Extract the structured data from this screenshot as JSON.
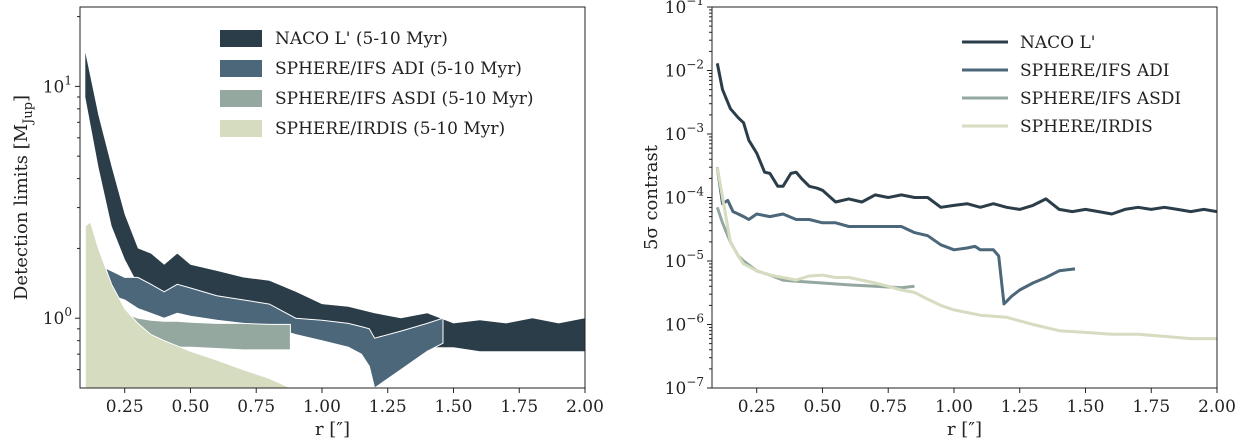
{
  "chart_data": [
    {
      "type": "area",
      "title": "",
      "xlabel": "r [″]",
      "ylabel": "Detection limits [M",
      "ylabel_sub": "Jup",
      "ylabel_suffix": "]",
      "xlim": [
        0.08,
        2.0
      ],
      "ylim": [
        0.5,
        22
      ],
      "yscale": "log",
      "grid": false,
      "legend_position": "top-right",
      "x_ticks": [
        {
          "value": 0.25,
          "label": "0.25"
        },
        {
          "value": 0.5,
          "label": "0.50"
        },
        {
          "value": 0.75,
          "label": "0.75"
        },
        {
          "value": 1.0,
          "label": "1.00"
        },
        {
          "value": 1.25,
          "label": "1.25"
        },
        {
          "value": 1.5,
          "label": "1.50"
        },
        {
          "value": 1.75,
          "label": "1.75"
        },
        {
          "value": 2.0,
          "label": "2.00"
        }
      ],
      "y_ticks": [
        {
          "value": 1,
          "label": "10",
          "exp": "0"
        },
        {
          "value": 10,
          "label": "10",
          "exp": "1"
        }
      ],
      "series": [
        {
          "name": "NACO L' (5-10 Myr)",
          "color": "#2b3d49",
          "x": [
            0.1,
            0.15,
            0.2,
            0.25,
            0.3,
            0.35,
            0.4,
            0.45,
            0.5,
            0.6,
            0.7,
            0.8,
            0.9,
            1.0,
            1.1,
            1.2,
            1.3,
            1.4,
            1.5,
            1.6,
            1.7,
            1.8,
            1.9,
            2.0
          ],
          "upper": [
            14.0,
            7.5,
            4.5,
            2.8,
            2.0,
            1.9,
            1.7,
            1.9,
            1.7,
            1.6,
            1.5,
            1.45,
            1.3,
            1.15,
            1.12,
            1.05,
            1.0,
            1.05,
            0.95,
            0.98,
            0.95,
            1.0,
            0.95,
            1.0
          ],
          "lower": [
            9.0,
            4.5,
            2.5,
            1.8,
            1.4,
            1.3,
            1.25,
            1.25,
            1.2,
            1.15,
            1.1,
            1.05,
            1.0,
            0.98,
            0.95,
            0.75,
            0.72,
            0.75,
            0.75,
            0.72,
            0.72,
            0.72,
            0.72,
            0.72
          ]
        },
        {
          "name": "SPHERE/IFS ADI (5-10 Myr)",
          "color": "#4b6779",
          "x": [
            0.1,
            0.15,
            0.2,
            0.25,
            0.3,
            0.35,
            0.4,
            0.45,
            0.5,
            0.6,
            0.7,
            0.8,
            0.9,
            1.0,
            1.1,
            1.15,
            1.18,
            1.2,
            1.3,
            1.4,
            1.46
          ],
          "upper": [
            1.8,
            1.7,
            1.6,
            1.5,
            1.5,
            1.4,
            1.3,
            1.4,
            1.35,
            1.25,
            1.2,
            1.15,
            1.0,
            0.98,
            0.95,
            0.92,
            0.9,
            0.82,
            0.88,
            0.95,
            1.0
          ],
          "lower": [
            1.3,
            1.3,
            1.25,
            1.2,
            1.1,
            1.05,
            1.0,
            1.05,
            1.02,
            0.98,
            0.95,
            0.92,
            0.85,
            0.8,
            0.75,
            0.7,
            0.62,
            0.5,
            0.6,
            0.72,
            0.78
          ]
        },
        {
          "name": "SPHERE/IFS ASDI (5-10 Myr)",
          "color": "#94a89f",
          "x": [
            0.1,
            0.15,
            0.2,
            0.25,
            0.3,
            0.35,
            0.4,
            0.45,
            0.5,
            0.6,
            0.7,
            0.8,
            0.88
          ],
          "upper": [
            1.5,
            1.2,
            1.1,
            1.05,
            1.0,
            0.98,
            0.97,
            0.97,
            0.96,
            0.95,
            0.95,
            0.94,
            0.94
          ],
          "lower": [
            0.9,
            0.85,
            0.82,
            0.8,
            0.78,
            0.76,
            0.76,
            0.75,
            0.75,
            0.74,
            0.73,
            0.73,
            0.73
          ]
        },
        {
          "name": "SPHERE/IRDIS (5-10 Myr)",
          "color": "#d5dcc0",
          "x": [
            0.1,
            0.12,
            0.15,
            0.2,
            0.25,
            0.3,
            0.35,
            0.4,
            0.5,
            0.6,
            0.7,
            0.8,
            0.88
          ],
          "upper": [
            2.5,
            2.6,
            2.0,
            1.4,
            1.1,
            0.95,
            0.85,
            0.8,
            0.72,
            0.66,
            0.6,
            0.55,
            0.5
          ],
          "lower": [
            0.5,
            0.5,
            0.5,
            0.5,
            0.5,
            0.5,
            0.5,
            0.5,
            0.5,
            0.5,
            0.5,
            0.5,
            0.5
          ]
        }
      ]
    },
    {
      "type": "line",
      "title": "",
      "xlabel": "r [″]",
      "ylabel": "5σ contrast",
      "xlim": [
        0.08,
        2.0
      ],
      "ylim": [
        1e-07,
        0.1
      ],
      "yscale": "log",
      "grid": false,
      "legend_position": "top-right",
      "x_ticks": [
        {
          "value": 0.25,
          "label": "0.25"
        },
        {
          "value": 0.5,
          "label": "0.50"
        },
        {
          "value": 0.75,
          "label": "0.75"
        },
        {
          "value": 1.0,
          "label": "1.00"
        },
        {
          "value": 1.25,
          "label": "1.25"
        },
        {
          "value": 1.5,
          "label": "1.50"
        },
        {
          "value": 1.75,
          "label": "1.75"
        },
        {
          "value": 2.0,
          "label": "2.00"
        }
      ],
      "y_ticks": [
        {
          "value": 1e-07,
          "label": "10",
          "exp": "−7"
        },
        {
          "value": 1e-06,
          "label": "10",
          "exp": "−6"
        },
        {
          "value": 1e-05,
          "label": "10",
          "exp": "−5"
        },
        {
          "value": 0.0001,
          "label": "10",
          "exp": "−4"
        },
        {
          "value": 0.001,
          "label": "10",
          "exp": "−3"
        },
        {
          "value": 0.01,
          "label": "10",
          "exp": "−2"
        },
        {
          "value": 0.1,
          "label": "10",
          "exp": "−1"
        }
      ],
      "series": [
        {
          "name": "NACO L'",
          "color": "#2b3d49",
          "x": [
            0.1,
            0.12,
            0.15,
            0.18,
            0.2,
            0.22,
            0.25,
            0.28,
            0.3,
            0.33,
            0.35,
            0.38,
            0.4,
            0.42,
            0.45,
            0.48,
            0.5,
            0.55,
            0.6,
            0.65,
            0.7,
            0.75,
            0.8,
            0.85,
            0.9,
            0.95,
            1.0,
            1.05,
            1.1,
            1.15,
            1.2,
            1.25,
            1.3,
            1.35,
            1.4,
            1.45,
            1.5,
            1.55,
            1.6,
            1.65,
            1.7,
            1.75,
            1.8,
            1.85,
            1.9,
            1.95,
            2.0
          ],
          "y": [
            0.013,
            0.005,
            0.0025,
            0.0018,
            0.0015,
            0.0008,
            0.0005,
            0.00025,
            0.00024,
            0.00015,
            0.00015,
            0.00024,
            0.00025,
            0.0002,
            0.00015,
            0.00014,
            0.00013,
            8.5e-05,
            9.5e-05,
            8.5e-05,
            0.00011,
            0.0001,
            0.00011,
            0.0001,
            0.0001,
            7e-05,
            7.5e-05,
            8e-05,
            7e-05,
            8e-05,
            7e-05,
            6.5e-05,
            7.5e-05,
            9.5e-05,
            6.5e-05,
            6e-05,
            6.5e-05,
            6e-05,
            5.5e-05,
            6.5e-05,
            7e-05,
            6.5e-05,
            7e-05,
            6.5e-05,
            6e-05,
            6.5e-05,
            6e-05
          ]
        },
        {
          "name": "SPHERE/IFS ADI",
          "color": "#4b6779",
          "x": [
            0.1,
            0.12,
            0.14,
            0.16,
            0.18,
            0.2,
            0.22,
            0.25,
            0.3,
            0.35,
            0.4,
            0.45,
            0.5,
            0.55,
            0.6,
            0.65,
            0.7,
            0.75,
            0.8,
            0.85,
            0.9,
            0.95,
            1.0,
            1.05,
            1.08,
            1.1,
            1.15,
            1.17,
            1.19,
            1.22,
            1.25,
            1.3,
            1.35,
            1.4,
            1.46
          ],
          "y": [
            0.0003,
            8e-05,
            9e-05,
            6e-05,
            5.5e-05,
            5e-05,
            4.5e-05,
            5.5e-05,
            5e-05,
            5.5e-05,
            4.5e-05,
            4.5e-05,
            4e-05,
            4e-05,
            3.5e-05,
            3.5e-05,
            3.5e-05,
            3.5e-05,
            3.5e-05,
            2.8e-05,
            2.5e-05,
            1.8e-05,
            1.5e-05,
            1.6e-05,
            1.7e-05,
            1.5e-05,
            1.5e-05,
            1.2e-05,
            2.1e-06,
            2.8e-06,
            3.5e-06,
            4.5e-06,
            5.5e-06,
            7e-06,
            7.5e-06
          ]
        },
        {
          "name": "SPHERE/IFS ASDI",
          "color": "#94a89f",
          "x": [
            0.1,
            0.12,
            0.15,
            0.18,
            0.2,
            0.25,
            0.3,
            0.35,
            0.4,
            0.5,
            0.6,
            0.7,
            0.8,
            0.85
          ],
          "y": [
            7e-05,
            4e-05,
            2e-05,
            1.2e-05,
            1e-05,
            7e-06,
            6e-06,
            5e-06,
            4.8e-06,
            4.5e-06,
            4.2e-06,
            4e-06,
            3.8e-06,
            4e-06
          ]
        },
        {
          "name": "SPHERE/IRDIS",
          "color": "#d5dcc0",
          "x": [
            0.1,
            0.12,
            0.15,
            0.18,
            0.2,
            0.25,
            0.3,
            0.35,
            0.4,
            0.45,
            0.5,
            0.55,
            0.6,
            0.65,
            0.7,
            0.75,
            0.8,
            0.85,
            0.9,
            0.95,
            1.0,
            1.1,
            1.2,
            1.3,
            1.4,
            1.5,
            1.6,
            1.7,
            1.8,
            1.9,
            2.0
          ],
          "y": [
            0.0003,
            0.0001,
            2e-05,
            1.2e-05,
            9e-06,
            7e-06,
            6e-06,
            5.5e-06,
            5e-06,
            5.8e-06,
            6e-06,
            5.5e-06,
            5.5e-06,
            5e-06,
            4.5e-06,
            4e-06,
            3.5e-06,
            3.2e-06,
            2.5e-06,
            2e-06,
            1.7e-06,
            1.4e-06,
            1.3e-06,
            1e-06,
            8e-07,
            7.5e-07,
            7e-07,
            7e-07,
            6.5e-07,
            6e-07,
            6e-07
          ]
        }
      ]
    }
  ]
}
